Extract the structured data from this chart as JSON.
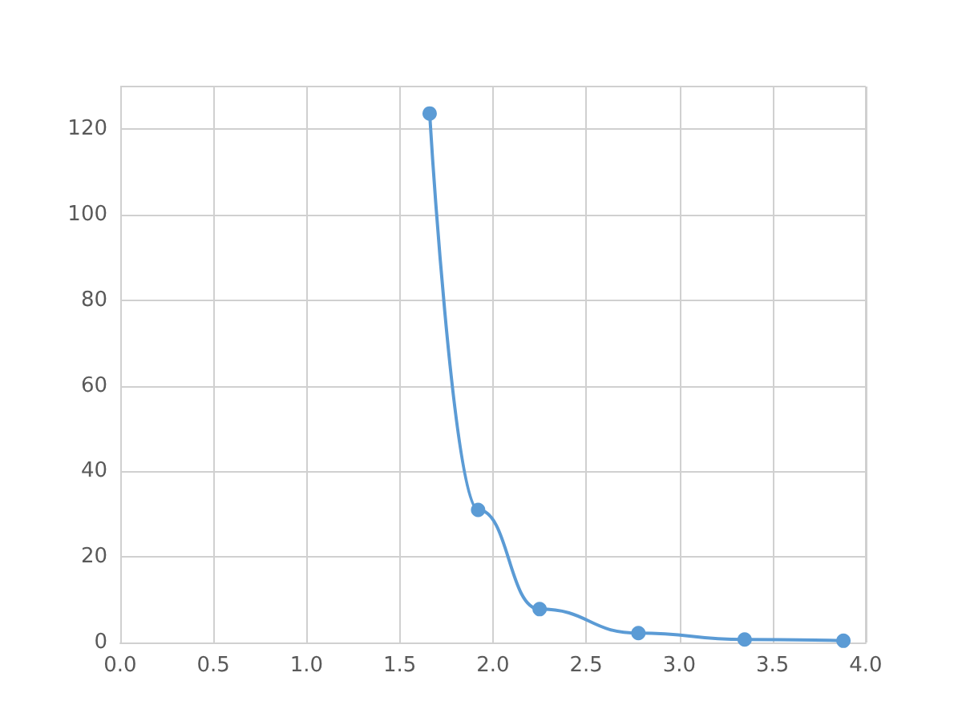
{
  "chart_data": {
    "type": "line",
    "x": [
      1.66,
      1.92,
      2.25,
      2.78,
      3.35,
      3.88
    ],
    "series": [
      {
        "color": "#5b9bd5",
        "values": [
          123.7,
          31,
          7.8,
          2.2,
          0.7,
          0.4
        ]
      }
    ],
    "xlim": [
      0,
      4
    ],
    "xticks": [
      {
        "value": 0,
        "label": "0.0"
      },
      {
        "value": 0.5,
        "label": "0.5"
      },
      {
        "value": 1,
        "label": "1.0"
      },
      {
        "value": 1.5,
        "label": "1.5"
      },
      {
        "value": 2,
        "label": "2.0"
      },
      {
        "value": 2.5,
        "label": "2.5"
      },
      {
        "value": 3,
        "label": "3.0"
      },
      {
        "value": 3.5,
        "label": "3.5"
      },
      {
        "value": 4,
        "label": "4.0"
      }
    ],
    "ylim": [
      0,
      130
    ],
    "yticks": [
      0,
      20,
      40,
      60,
      80,
      100,
      120
    ],
    "grid": true,
    "marker": "circle",
    "line_style": "solid"
  }
}
